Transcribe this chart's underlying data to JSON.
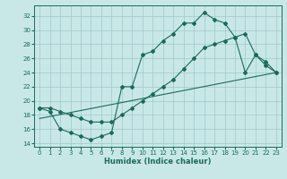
{
  "xlabel": "Humidex (Indice chaleur)",
  "background_color": "#c8e8e8",
  "grid_color": "#a0c8c8",
  "line_color": "#1a6b5a",
  "xlim": [
    -0.5,
    23.5
  ],
  "ylim": [
    13.5,
    33.5
  ],
  "xticks": [
    0,
    1,
    2,
    3,
    4,
    5,
    6,
    7,
    8,
    9,
    10,
    11,
    12,
    13,
    14,
    15,
    16,
    17,
    18,
    19,
    20,
    21,
    22,
    23
  ],
  "yticks": [
    14,
    16,
    18,
    20,
    22,
    24,
    26,
    28,
    30,
    32
  ],
  "line1_x": [
    0,
    1,
    2,
    3,
    4,
    5,
    6,
    7,
    8,
    9,
    10,
    11,
    12,
    13,
    14,
    15,
    16,
    17,
    18,
    19,
    20,
    21,
    22,
    23
  ],
  "line1_y": [
    19,
    18.5,
    16,
    15.5,
    15,
    14.5,
    15,
    15.5,
    22,
    22,
    26.5,
    27,
    28.5,
    29.5,
    31,
    31,
    32.5,
    31.5,
    31,
    29,
    24,
    26.5,
    25,
    24
  ],
  "line2_x": [
    0,
    1,
    2,
    3,
    4,
    5,
    6,
    7,
    8,
    9,
    10,
    11,
    12,
    13,
    14,
    15,
    16,
    17,
    18,
    19,
    20,
    21,
    22,
    23
  ],
  "line2_y": [
    19,
    19,
    18.5,
    18,
    17.5,
    17,
    17,
    17,
    18,
    19,
    20,
    21,
    22,
    23,
    24.5,
    26,
    27.5,
    28,
    28.5,
    29,
    29.5,
    26.5,
    25.5,
    24
  ],
  "line3_x": [
    0,
    23
  ],
  "line3_y": [
    17.5,
    24
  ]
}
